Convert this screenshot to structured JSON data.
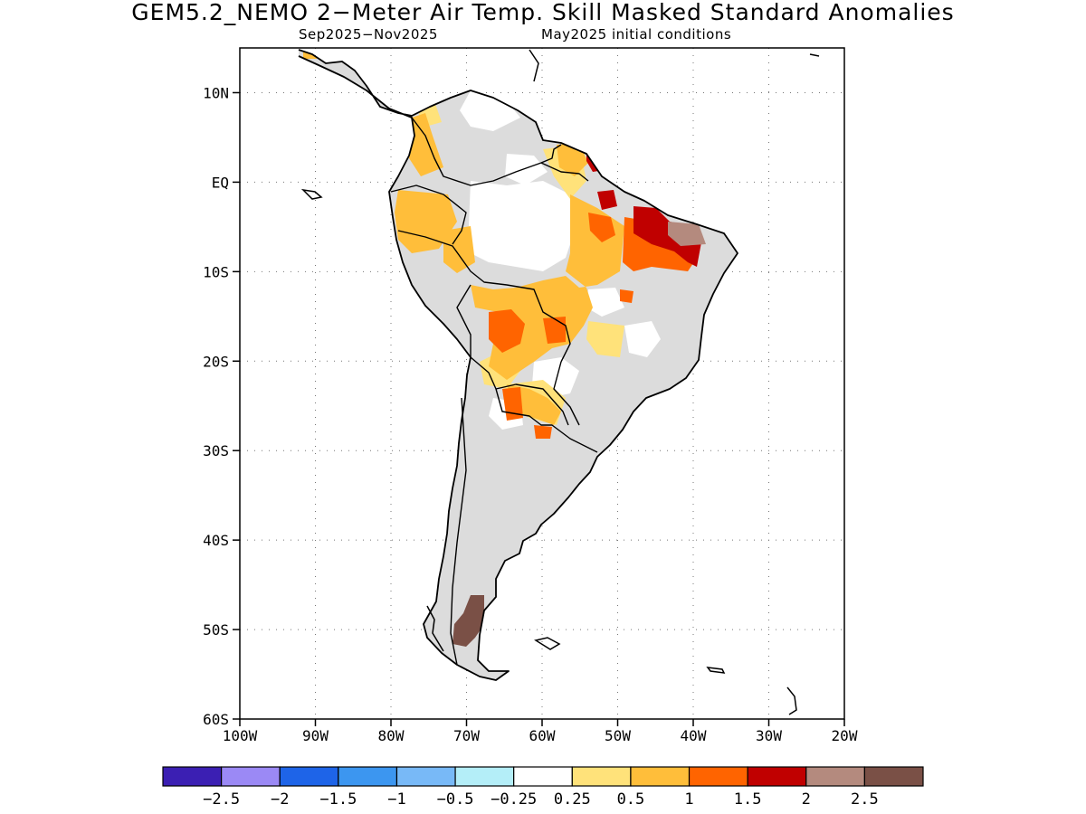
{
  "title": "GEM5.2_NEMO 2−Meter Air Temp. Skill Masked Standard Anomalies",
  "subtitle_period": "Sep2025−Nov2025",
  "subtitle_init": "May2025 initial conditions",
  "map": {
    "lon_range": [
      -100,
      -20
    ],
    "lat_range": [
      -60,
      15
    ],
    "grid": "dotted",
    "lat_ticks": [
      "10N",
      "EQ",
      "10S",
      "20S",
      "30S",
      "40S",
      "50S",
      "60S"
    ],
    "lon_ticks": [
      "100W",
      "90W",
      "80W",
      "70W",
      "60W",
      "50W",
      "40W",
      "30W",
      "20W"
    ],
    "masked_color": "#dcdcdc"
  },
  "colorbar": {
    "labels": [
      "−2.5",
      "−2",
      "−1.5",
      "−1",
      "−0.5",
      "−0.25",
      "0.25",
      "0.5",
      "1",
      "1.5",
      "2",
      "2.5"
    ],
    "colors": [
      "#3b1fb3",
      "#9b89f5",
      "#1e64e8",
      "#3c96f0",
      "#78b9f7",
      "#b4eef8",
      "#ffffff",
      "#ffe27a",
      "#ffbe3a",
      "#ff6400",
      "#c00000",
      "#b48a7e",
      "#7a5046"
    ]
  }
}
